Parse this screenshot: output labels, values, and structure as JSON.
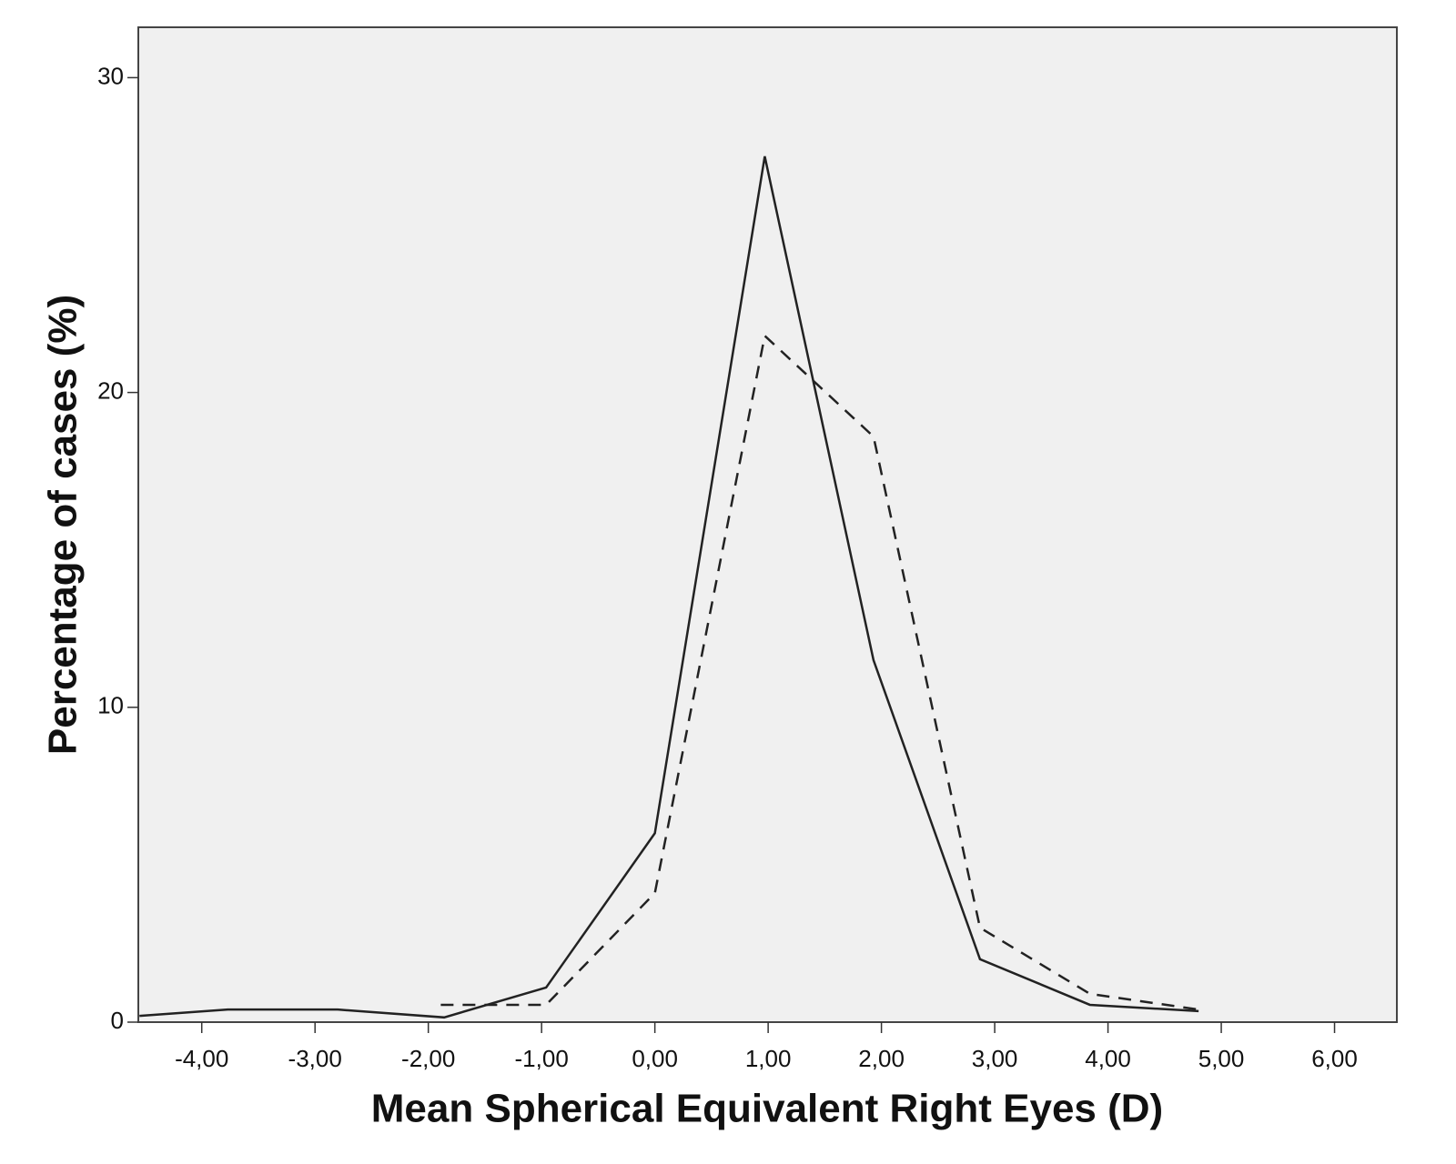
{
  "chart_data": {
    "type": "line",
    "xlabel": "Mean Spherical Equivalent Right Eyes (D)",
    "ylabel": "Percentage of cases (%)",
    "xlim": [
      -4.56,
      6.55
    ],
    "ylim": [
      0,
      31.6
    ],
    "xticks": [
      {
        "value": -4,
        "label": "-4,00"
      },
      {
        "value": -3,
        "label": "-3,00"
      },
      {
        "value": -2,
        "label": "-2,00"
      },
      {
        "value": -1,
        "label": "-1,00"
      },
      {
        "value": 0,
        "label": "0,00"
      },
      {
        "value": 1,
        "label": "1,00"
      },
      {
        "value": 2,
        "label": "2,00"
      },
      {
        "value": 3,
        "label": "3,00"
      },
      {
        "value": 4,
        "label": "4,00"
      },
      {
        "value": 5,
        "label": "5,00"
      },
      {
        "value": 6,
        "label": "6,00"
      }
    ],
    "yticks": [
      0,
      10,
      20,
      30
    ],
    "background": "#f0f0f0",
    "series": [
      {
        "color": "#222222",
        "dash": "solid",
        "x": [
          -4.55,
          -3.77,
          -2.8,
          -1.86,
          -0.96,
          0.0,
          0.97,
          1.93,
          2.87,
          3.84,
          4.8
        ],
        "values": [
          0.2,
          0.4,
          0.4,
          0.15,
          1.1,
          6.0,
          27.5,
          11.5,
          2.0,
          0.55,
          0.35
        ]
      },
      {
        "color": "#222222",
        "dash": "dashed",
        "x": [
          -1.89,
          -0.96,
          0.0,
          0.97,
          1.93,
          2.87,
          3.84,
          4.8
        ],
        "values": [
          0.55,
          0.55,
          4.1,
          21.8,
          18.6,
          3.0,
          0.9,
          0.4
        ]
      }
    ]
  }
}
